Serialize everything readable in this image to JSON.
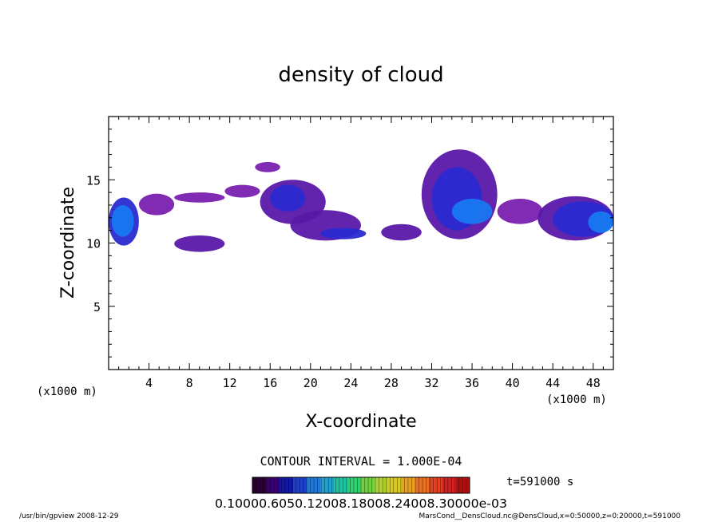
{
  "chart_data": {
    "type": "heatmap",
    "title": "density of cloud",
    "xlabel": "X-coordinate",
    "ylabel": "Z-coordinate",
    "x_unit_left": "(x1000 m)",
    "x_unit_right": "(x1000 m)",
    "xlim": [
      0,
      50
    ],
    "ylim": [
      0,
      20
    ],
    "xticks": [
      4,
      8,
      12,
      16,
      20,
      24,
      28,
      32,
      36,
      40,
      44,
      48
    ],
    "yticks": [
      5,
      10,
      15
    ],
    "contour_interval": "CONTOUR INTERVAL = 1.000E-04",
    "time_label": "t=591000 s",
    "colorbar_labels": "0.10000.6050.12008.18008.24008.30000e-03",
    "cloud_regions": [
      {
        "x": [
          0,
          3
        ],
        "z": [
          9.8,
          13.6
        ],
        "level": 3
      },
      {
        "x": [
          0.3,
          2.5
        ],
        "z": [
          10.5,
          13
        ],
        "level": 4
      },
      {
        "x": [
          3,
          6.5
        ],
        "z": [
          12.2,
          13.9
        ],
        "level": 1
      },
      {
        "x": [
          6.5,
          11.5
        ],
        "z": [
          13.2,
          14.0
        ],
        "level": 1
      },
      {
        "x": [
          11.5,
          15
        ],
        "z": [
          13.6,
          14.6
        ],
        "level": 1
      },
      {
        "x": [
          15,
          21.5
        ],
        "z": [
          11.5,
          15.0
        ],
        "level": 2
      },
      {
        "x": [
          16,
          19.5
        ],
        "z": [
          12.5,
          14.6
        ],
        "level": 3
      },
      {
        "x": [
          14.5,
          17
        ],
        "z": [
          15.6,
          16.4
        ],
        "level": 1
      },
      {
        "x": [
          18,
          25
        ],
        "z": [
          10.2,
          12.6
        ],
        "level": 2
      },
      {
        "x": [
          21,
          25.5
        ],
        "z": [
          10.3,
          11.2
        ],
        "level": 3
      },
      {
        "x": [
          6.5,
          11.5
        ],
        "z": [
          9.3,
          10.6
        ],
        "level": 2
      },
      {
        "x": [
          27,
          31
        ],
        "z": [
          10.2,
          11.5
        ],
        "level": 2
      },
      {
        "x": [
          31,
          38.5
        ],
        "z": [
          10.3,
          17.4
        ],
        "level": 2
      },
      {
        "x": [
          32,
          37
        ],
        "z": [
          11,
          16
        ],
        "level": 3
      },
      {
        "x": [
          34,
          38
        ],
        "z": [
          11.5,
          13.5
        ],
        "level": 4
      },
      {
        "x": [
          38.5,
          43
        ],
        "z": [
          11.5,
          13.5
        ],
        "level": 1
      },
      {
        "x": [
          42.5,
          50
        ],
        "z": [
          10.2,
          13.7
        ],
        "level": 2
      },
      {
        "x": [
          44,
          50
        ],
        "z": [
          10.5,
          13.3
        ],
        "level": 3
      },
      {
        "x": [
          47.5,
          50
        ],
        "z": [
          10.8,
          12.5
        ],
        "level": 4
      }
    ],
    "colorbar_colors": [
      "#2a0033",
      "#3a0070",
      "#1018a8",
      "#1e40c8",
      "#1e78d8",
      "#20a0d0",
      "#20c0a0",
      "#30d070",
      "#70d040",
      "#b0d030",
      "#d8c828",
      "#e8a020",
      "#e87020",
      "#e04020",
      "#d02020",
      "#b01010"
    ],
    "colors": {
      "level_1": "#7a1fb0",
      "level_2": "#5a18a8",
      "level_3": "#2a2ad0",
      "level_4": "#1878f0"
    }
  },
  "footer": {
    "left": "/usr/bin/gpview  2008-12-29",
    "right": "MarsCond__DensCloud.nc@DensCloud,x=0:50000,z=0:20000,t=591000"
  }
}
